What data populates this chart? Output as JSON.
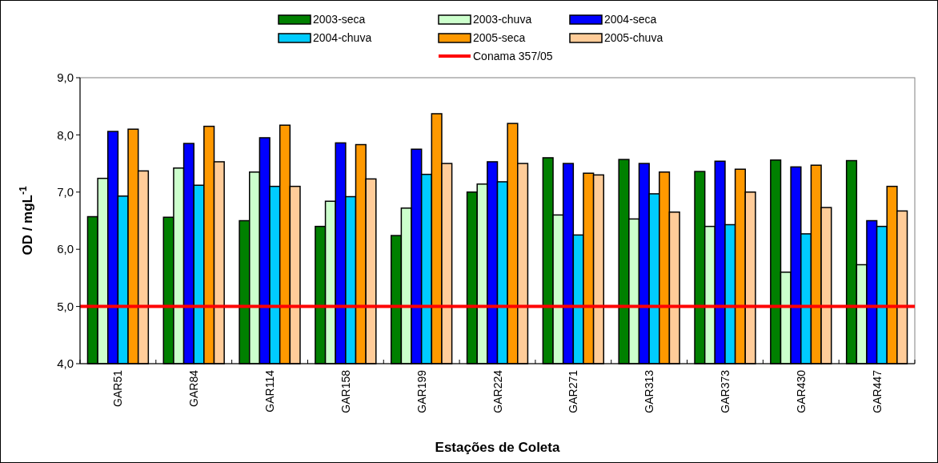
{
  "chart_data": {
    "type": "bar",
    "xlabel": "Estações de Coleta",
    "ylabel": "OD / mgL$^{-1}$",
    "categories": [
      "GAR51",
      "GAR84",
      "GAR114",
      "GAR158",
      "GAR199",
      "GAR224",
      "GAR271",
      "GAR313",
      "GAR373",
      "GAR430",
      "GAR447"
    ],
    "series": [
      {
        "name": "2003-seca",
        "color": "#008000",
        "values": [
          6.57,
          6.56,
          6.5,
          6.4,
          6.24,
          7.0,
          7.6,
          7.57,
          7.36,
          7.56,
          7.55
        ]
      },
      {
        "name": "2003-chuva",
        "color": "#ccffcc",
        "values": [
          7.24,
          7.42,
          7.35,
          6.84,
          6.72,
          7.14,
          6.6,
          6.53,
          6.4,
          5.6,
          5.73
        ]
      },
      {
        "name": "2004-seca",
        "color": "#0000ff",
        "values": [
          8.06,
          7.85,
          7.95,
          7.86,
          7.75,
          7.53,
          7.5,
          7.5,
          7.54,
          7.44,
          6.5
        ]
      },
      {
        "name": "2004-chuva",
        "color": "#00ccff",
        "values": [
          6.93,
          7.12,
          7.1,
          6.92,
          7.31,
          7.18,
          6.25,
          6.97,
          6.43,
          6.27,
          6.4
        ]
      },
      {
        "name": "2005-seca",
        "color": "#ff9900",
        "values": [
          8.1,
          8.15,
          8.17,
          7.83,
          8.37,
          8.2,
          7.33,
          7.35,
          7.4,
          7.47,
          7.1
        ]
      },
      {
        "name": "2005-chuva",
        "color": "#ffcc99",
        "values": [
          7.37,
          7.53,
          7.1,
          7.23,
          7.5,
          7.5,
          7.3,
          6.65,
          7.0,
          6.73,
          6.67
        ]
      }
    ],
    "ylim": [
      4,
      9
    ],
    "yticks": [
      {
        "value": 4,
        "label": "4,0"
      },
      {
        "value": 5,
        "label": "5,0"
      },
      {
        "value": 6,
        "label": "6,0"
      },
      {
        "value": 7,
        "label": "7,0"
      },
      {
        "value": 8,
        "label": "8,0"
      },
      {
        "value": 9,
        "label": "9,0"
      }
    ],
    "ref_lines": [
      {
        "axis": "y",
        "value": 5,
        "label": "Conama 357/05",
        "color": "#ff0000"
      }
    ],
    "legend": "top",
    "grid": false
  }
}
